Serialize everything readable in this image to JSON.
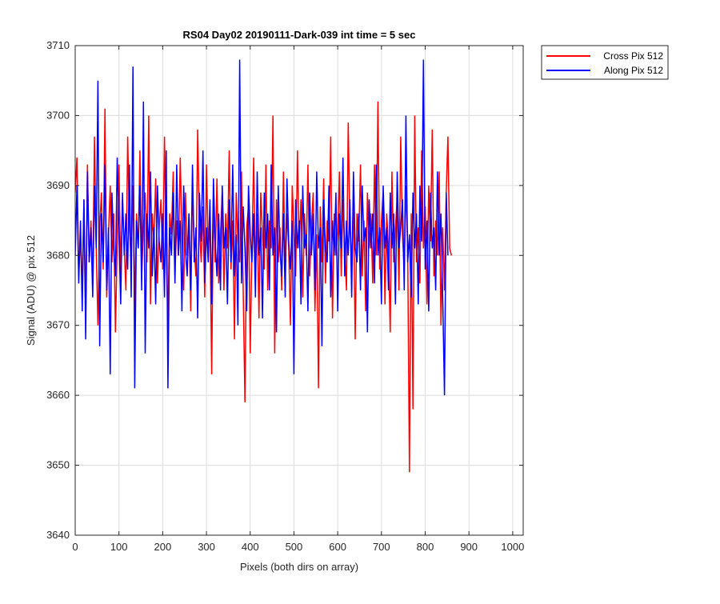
{
  "chart_data": {
    "type": "line",
    "title": "RS04 Day02 20190111-Dark-039 int time = 5 sec",
    "xlabel": "Pixels (both dirs on array)",
    "ylabel": "Signal (ADU) @ pix 512",
    "xlim": [
      0,
      1024
    ],
    "ylim": [
      3640,
      3710
    ],
    "xticks": [
      0,
      100,
      200,
      300,
      400,
      500,
      600,
      700,
      800,
      900,
      1000
    ],
    "yticks": [
      3640,
      3650,
      3660,
      3670,
      3680,
      3690,
      3700,
      3710
    ],
    "grid": true,
    "legend_location": "outside top-right",
    "sampling": {
      "x_start": 0,
      "x_step": 4,
      "note_values": "Values are approximate readings (every 4th pixel) of noisy dark-signal traces."
    },
    "series": [
      {
        "name": "Cross Pix 512",
        "color": "#ff0000",
        "values": [
          3689,
          3694,
          3677,
          3683,
          3675,
          3688,
          3672,
          3693,
          3679,
          3685,
          3676,
          3697,
          3681,
          3670,
          3684,
          3689,
          3678,
          3701,
          3674,
          3683,
          3690,
          3679,
          3686,
          3669,
          3682,
          3693,
          3677,
          3688,
          3681,
          3675,
          3697,
          3684,
          3679,
          3690,
          3672,
          3686,
          3681,
          3695,
          3677,
          3684,
          3689,
          3679,
          3700,
          3673,
          3686,
          3682,
          3691,
          3676,
          3684,
          3688,
          3678,
          3697,
          3681,
          3670,
          3686,
          3683,
          3692,
          3677,
          3685,
          3680,
          3694,
          3683,
          3675,
          3689,
          3680,
          3686,
          3672,
          3690,
          3681,
          3677,
          3698,
          3684,
          3679,
          3687,
          3674,
          3693,
          3681,
          3685,
          3663,
          3688,
          3679,
          3691,
          3676,
          3683,
          3689,
          3675,
          3686,
          3681,
          3695,
          3678,
          3685,
          3668,
          3689,
          3682,
          3679,
          3692,
          3675,
          3659,
          3684,
          3687,
          3666,
          3681,
          3694,
          3677,
          3686,
          3671,
          3689,
          3683,
          3678,
          3693,
          3675,
          3685,
          3681,
          3700,
          3666,
          3688,
          3679,
          3684,
          3675,
          3692,
          3678,
          3686,
          3681,
          3670,
          3690,
          3683,
          3677,
          3695,
          3681,
          3688,
          3674,
          3686,
          3680,
          3693,
          3677,
          3684,
          3689,
          3672,
          3683,
          3661,
          3687,
          3679,
          3691,
          3676,
          3685,
          3682,
          3697,
          3671,
          3686,
          3680,
          3683,
          3692,
          3677,
          3688,
          3681,
          3675,
          3699,
          3684,
          3679,
          3688,
          3668,
          3686,
          3682,
          3693,
          3677,
          3685,
          3672,
          3689,
          3681,
          3686,
          3676,
          3693,
          3680,
          3702,
          3678,
          3685,
          3689,
          3673,
          3686,
          3681,
          3669,
          3692,
          3679,
          3684,
          3688,
          3675,
          3697,
          3683,
          3678,
          3690,
          3681,
          3649,
          3686,
          3658,
          3700,
          3679,
          3684,
          3676,
          3695,
          3681,
          3687,
          3673,
          3690,
          3682,
          3698,
          3677,
          3685,
          3680,
          3692,
          3670,
          3684,
          3675,
          3689,
          3697,
          3681,
          3680
        ]
      },
      {
        "name": "Along Pix 512",
        "color": "#0000ff",
        "values": [
          3680,
          3690,
          3676,
          3685,
          3672,
          3688,
          3668,
          3692,
          3679,
          3684,
          3674,
          3690,
          3681,
          3705,
          3667,
          3686,
          3679,
          3693,
          3675,
          3684,
          3663,
          3689,
          3681,
          3677,
          3694,
          3683,
          3673,
          3689,
          3680,
          3686,
          3678,
          3693,
          3674,
          3707,
          3661,
          3685,
          3681,
          3690,
          3675,
          3702,
          3666,
          3686,
          3681,
          3692,
          3677,
          3684,
          3673,
          3690,
          3682,
          3679,
          3686,
          3674,
          3695,
          3661,
          3684,
          3680,
          3689,
          3676,
          3693,
          3680,
          3685,
          3672,
          3690,
          3681,
          3677,
          3686,
          3675,
          3693,
          3679,
          3684,
          3671,
          3689,
          3682,
          3695,
          3676,
          3684,
          3679,
          3688,
          3673,
          3691,
          3682,
          3677,
          3686,
          3675,
          3690,
          3681,
          3684,
          3673,
          3688,
          3679,
          3693,
          3677,
          3683,
          3670,
          3708,
          3676,
          3687,
          3681,
          3672,
          3690,
          3683,
          3679,
          3686,
          3674,
          3692,
          3680,
          3684,
          3671,
          3689,
          3681,
          3686,
          3675,
          3693,
          3680,
          3684,
          3669,
          3690,
          3681,
          3677,
          3686,
          3674,
          3691,
          3682,
          3678,
          3685,
          3663,
          3688,
          3681,
          3685,
          3673,
          3690,
          3681,
          3683,
          3672,
          3689,
          3680,
          3686,
          3675,
          3692,
          3681,
          3684,
          3667,
          3688,
          3681,
          3679,
          3690,
          3674,
          3685,
          3680,
          3689,
          3672,
          3686,
          3681,
          3694,
          3677,
          3685,
          3680,
          3688,
          3674,
          3692,
          3681,
          3679,
          3686,
          3675,
          3690,
          3682,
          3684,
          3669,
          3688,
          3681,
          3686,
          3676,
          3693,
          3680,
          3684,
          3673,
          3690,
          3681,
          3684,
          3675,
          3689,
          3681,
          3686,
          3673,
          3692,
          3681,
          3684,
          3688,
          3675,
          3700,
          3679,
          3683,
          3674,
          3689,
          3681,
          3686,
          3673,
          3690,
          3682,
          3708,
          3678,
          3685,
          3672,
          3689,
          3681,
          3684,
          3675,
          3692,
          3680,
          3686,
          3674,
          3660,
          3689,
          3680
        ]
      }
    ]
  }
}
